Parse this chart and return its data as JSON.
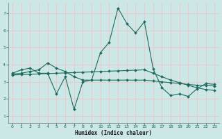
{
  "xlabel": "Humidex (Indice chaleur)",
  "background_color": "#cce8e6",
  "grid_color": "#f0c8c8",
  "line_color": "#1a6b5e",
  "spine_color": "#888888",
  "tick_color": "#1a6b5e",
  "x_ticks": [
    0,
    1,
    2,
    3,
    4,
    5,
    6,
    7,
    8,
    9,
    10,
    11,
    12,
    13,
    14,
    15,
    16,
    17,
    18,
    19,
    20,
    21,
    22,
    23
  ],
  "y_ticks": [
    1,
    2,
    3,
    4,
    5,
    6,
    7
  ],
  "ylim": [
    0.6,
    7.6
  ],
  "xlim": [
    -0.5,
    23.5
  ],
  "series1_x": [
    0,
    1,
    2,
    3,
    4,
    5,
    6,
    7,
    8,
    9,
    10,
    11,
    12,
    13,
    14,
    15,
    16,
    17,
    18,
    19,
    20,
    21,
    22,
    23
  ],
  "series1_y": [
    3.5,
    3.7,
    3.8,
    3.5,
    3.5,
    2.3,
    3.3,
    1.4,
    3.0,
    3.1,
    4.7,
    5.3,
    7.3,
    6.4,
    5.85,
    6.5,
    3.75,
    2.65,
    2.2,
    2.3,
    2.15,
    2.6,
    2.9,
    2.85
  ],
  "series2_x": [
    0,
    1,
    2,
    3,
    4,
    5,
    6,
    7,
    8,
    9,
    10,
    11,
    12,
    13,
    14,
    15,
    16,
    17,
    18,
    19,
    20,
    21,
    22,
    23
  ],
  "series2_y": [
    3.45,
    3.5,
    3.6,
    3.7,
    4.1,
    3.8,
    3.6,
    3.3,
    3.1,
    3.1,
    3.1,
    3.1,
    3.1,
    3.1,
    3.1,
    3.1,
    3.05,
    3.0,
    2.95,
    2.9,
    2.85,
    2.8,
    2.78,
    2.76
  ],
  "series3_x": [
    0,
    1,
    2,
    3,
    4,
    5,
    6,
    7,
    8,
    9,
    10,
    11,
    12,
    13,
    14,
    15,
    16,
    17,
    18,
    19,
    20,
    21,
    22,
    23
  ],
  "series3_y": [
    3.4,
    3.42,
    3.44,
    3.46,
    3.48,
    3.5,
    3.52,
    3.54,
    3.56,
    3.58,
    3.6,
    3.62,
    3.64,
    3.66,
    3.68,
    3.7,
    3.5,
    3.3,
    3.1,
    2.95,
    2.8,
    2.65,
    2.55,
    2.5
  ]
}
